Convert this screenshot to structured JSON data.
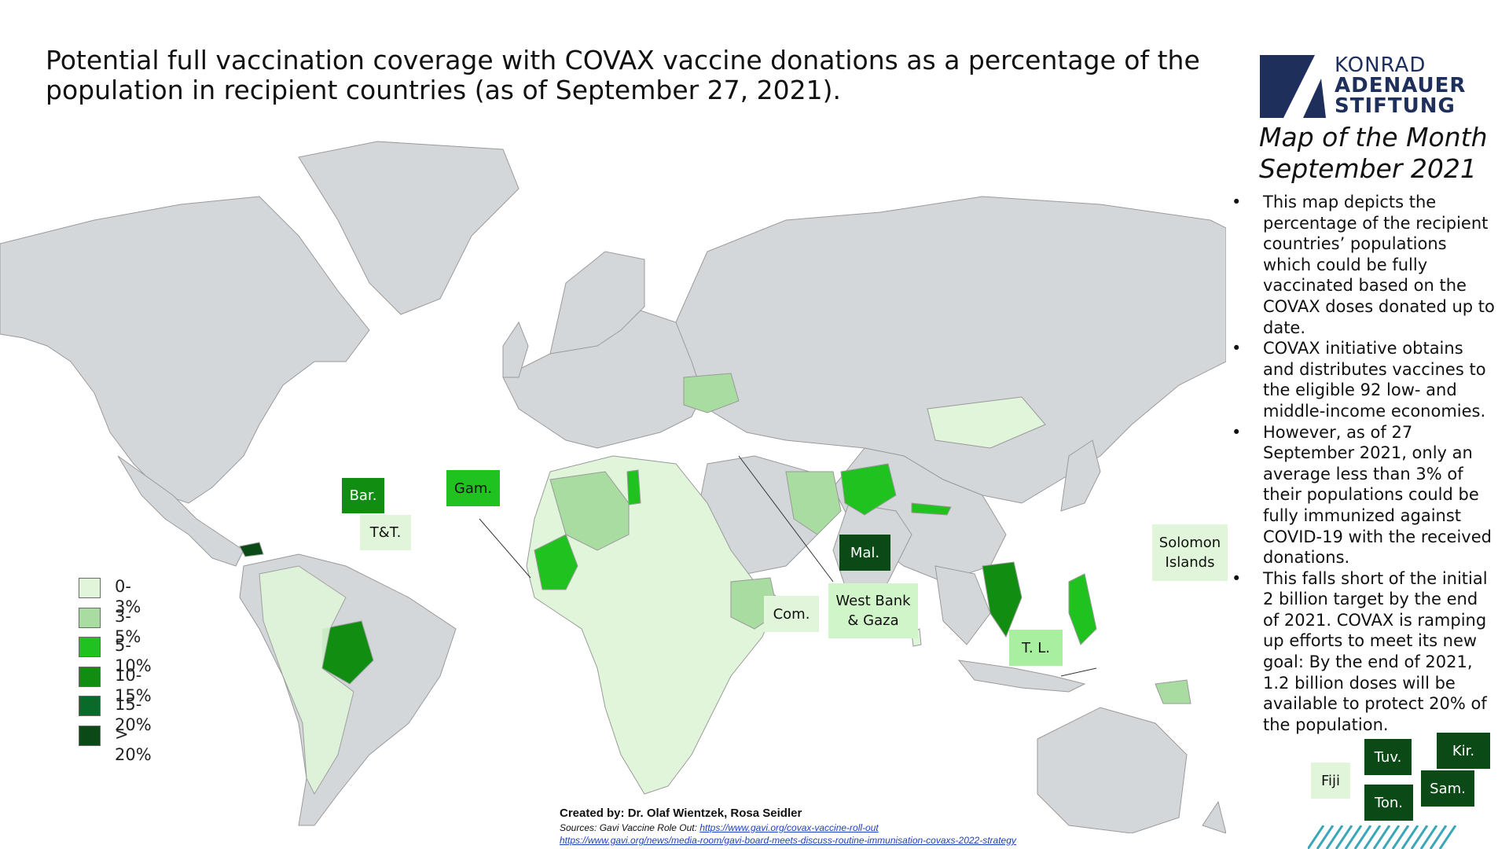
{
  "title": "Potential full vaccination coverage with COVAX vaccine donations as a percentage of the population in recipient countries (as of September 27, 2021).",
  "logo": {
    "line1": "KONRAD",
    "line2": "ADENAUER",
    "line3": "STIFTUNG",
    "color": "#1d2f5a"
  },
  "map_of_month": {
    "line1": "Map of the Month",
    "line2": "September 2021"
  },
  "bullets": [
    "This map depicts the percentage of the recipient countries’ populations which could be fully vaccinated based on the COVAX doses donated up to date.",
    "COVAX initiative obtains and distributes vaccines to the eligible 92 low- and middle-income economies.",
    "However, as of 27 September 2021, only an average less than 3% of their populations could be fully immunized against COVID-19 with the received donations.",
    "This falls short of the initial 2 billion target by the end of 2021. COVAX is ramping up efforts to meet its new goal: By the end of 2021, 1.2 billion doses will be available to protect 20% of the population."
  ],
  "legend": [
    {
      "label": "0-3%",
      "color": "#e0f5da"
    },
    {
      "label": "3-5%",
      "color": "#a8dca0"
    },
    {
      "label": "5-10%",
      "color": "#1fc21f"
    },
    {
      "label": "10-15%",
      "color": "#118e11"
    },
    {
      "label": "15-20%",
      "color": "#0a6a2a"
    },
    {
      "label": "> 20%",
      "color": "#0b4a16"
    }
  ],
  "small_country_labels": [
    {
      "label": "Bar.",
      "class": "15-20%"
    },
    {
      "label": "T&T.",
      "class": "0-3%"
    },
    {
      "label": "Gam.",
      "class": "5-10%"
    },
    {
      "label": "Mal.",
      "class": "> 20%"
    },
    {
      "label": "Com.",
      "class": "0-3%"
    },
    {
      "label": "West Bank & Gaza",
      "class": "0-3%"
    },
    {
      "label": "Solomon Islands",
      "class": "0-3%"
    },
    {
      "label": "T. L.",
      "class": "3-5%"
    },
    {
      "label": "Fiji",
      "class": "0-3%"
    },
    {
      "label": "Tuv.",
      "class": "> 20%"
    },
    {
      "label": "Kir.",
      "class": "> 20%"
    },
    {
      "label": "Sam.",
      "class": "> 20%"
    },
    {
      "label": "Ton.",
      "class": "> 20%"
    }
  ],
  "credit": "Created by: Dr. Olaf Wientzek, Rosa Seidler",
  "sources": {
    "prefix": "Sources: Gavi Vaccine Role Out: ",
    "link1": "https://www.gavi.org/covax-vaccine-roll-out",
    "link2": "https://www.gavi.org/news/media-room/gavi-board-meets-discuss-routine-immunisation-covaxs-2022-strategy"
  },
  "colors": {
    "land": "#d4d7da",
    "border": "#9a9a9a",
    "no_data": "#d4d7da"
  }
}
